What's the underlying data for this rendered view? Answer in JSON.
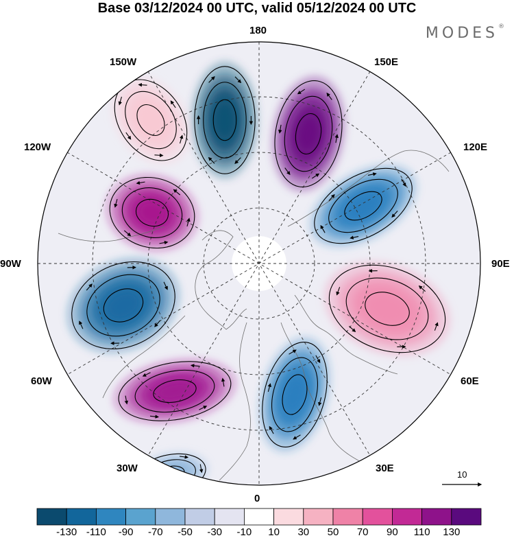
{
  "title": "Base 03/12/2024 00 UTC, valid 05/12/2024 00 UTC",
  "brand": "MODES",
  "brand_mark": "®",
  "longitude_labels": {
    "lon_180": "180",
    "lon_150e": "150E",
    "lon_120e": "120E",
    "lon_90e": "90E",
    "lon_60e": "60E",
    "lon_30e": "30E",
    "lon_0": "0",
    "lon_30w": "30W",
    "lon_60w": "60W",
    "lon_90w": "90W",
    "lon_120w": "120W",
    "lon_150w": "150W"
  },
  "reference_vector_label": "10",
  "colorbar": {
    "ticks": [
      "-130",
      "-110",
      "-90",
      "-70",
      "-50",
      "-30",
      "-10",
      "10",
      "30",
      "50",
      "70",
      "90",
      "110",
      "130"
    ],
    "colors": [
      "#0b4a6e",
      "#12669b",
      "#2f86bf",
      "#5aa3cf",
      "#8fb7dc",
      "#c1cde6",
      "#e4e4f1",
      "#ffffff",
      "#fbdbe0",
      "#f6b2c2",
      "#ef82a7",
      "#e3519c",
      "#c22995",
      "#8e128a",
      "#5a0a7e"
    ]
  },
  "anomaly_centers": [
    {
      "sign": "negative",
      "level": -130,
      "color": "#0f5375"
    },
    {
      "sign": "positive",
      "level": 130,
      "color": "#6a0a82"
    },
    {
      "sign": "negative",
      "level": -90,
      "color": "#2a7fbf"
    },
    {
      "sign": "positive",
      "level": 70,
      "color": "#f08db1"
    },
    {
      "sign": "negative",
      "level": -110,
      "color": "#1a6aa3"
    },
    {
      "sign": "positive",
      "level": 110,
      "color": "#a21a92"
    },
    {
      "sign": "negative",
      "level": -90,
      "color": "#2a7fbf"
    },
    {
      "sign": "positive",
      "level": 110,
      "color": "#a8198e"
    },
    {
      "sign": "negative",
      "level": -50,
      "color": "#8fb7dc"
    },
    {
      "sign": "positive",
      "level": 30,
      "color": "#f8c9d3"
    }
  ]
}
